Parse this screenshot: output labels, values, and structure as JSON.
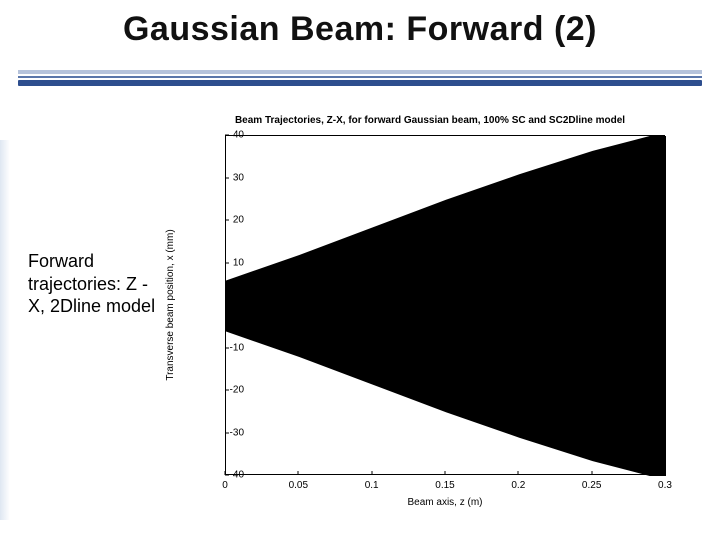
{
  "slide": {
    "title": "Gaussian Beam: Forward (2)",
    "title_color": "#111111",
    "title_fontsize": 34,
    "divider_colors": [
      "#b6c3db",
      "#5a76aa",
      "#2d4e8e"
    ],
    "side_text": "Forward trajectories: Z -X, 2Dline model",
    "side_text_fontsize": 18
  },
  "chart": {
    "type": "area",
    "title": "Beam Trajectories, Z-X, for forward Gaussian beam, 100% SC and SC2Dline model",
    "title_fontsize": 10,
    "xlabel": "Beam axis, z (m)",
    "ylabel": "Transverse beam position, x (mm)",
    "label_fontsize": 10,
    "xlim": [
      0,
      0.3
    ],
    "ylim": [
      -40,
      40
    ],
    "xticks": [
      0,
      0.05,
      0.1,
      0.15,
      0.2,
      0.25,
      0.3
    ],
    "yticks": [
      -40,
      -30,
      -20,
      -10,
      0,
      10,
      20,
      30,
      40
    ],
    "background_color": "#ffffff",
    "axis_color": "#000000",
    "tick_fontsize": 10,
    "beam_fill_color": "#000000",
    "envelope_z": [
      0.0,
      0.05,
      0.1,
      0.15,
      0.2,
      0.25,
      0.3
    ],
    "envelope_x": [
      6.0,
      12.0,
      18.5,
      25.0,
      31.0,
      36.5,
      41.0
    ]
  }
}
